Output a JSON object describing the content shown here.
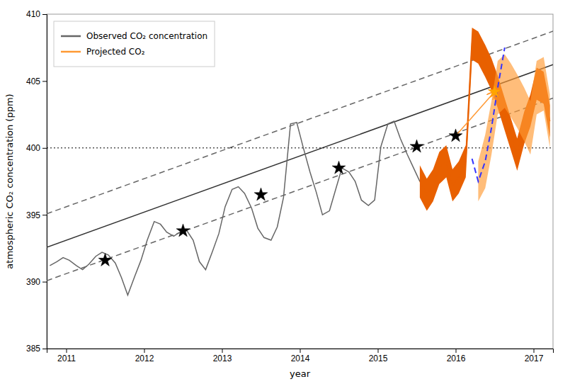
{
  "chart_data": {
    "type": "line",
    "xlabel": "year",
    "ylabel": "atmospheric CO₂ concentration (ppm)",
    "xlim": [
      2010.75,
      2017.25
    ],
    "ylim": [
      385,
      410
    ],
    "xticks": [
      2011,
      2012,
      2013,
      2014,
      2015,
      2016,
      2017
    ],
    "yticks": [
      385,
      390,
      395,
      400,
      405,
      410
    ],
    "grid": false,
    "legend": "upper left",
    "series": [
      {
        "type": "line",
        "color": "#666666",
        "line_style": "dashed",
        "x": [
          2010.75,
          2017.25
        ],
        "values": [
          395.075,
          408.725
        ]
      },
      {
        "type": "line",
        "color": "#666666",
        "line_style": "dashed",
        "x": [
          2010.75,
          2017.25
        ],
        "values": [
          390.075,
          403.725
        ]
      },
      {
        "type": "line",
        "color": "#333333",
        "line_style": "solid",
        "x": [
          2010.75,
          2017.25
        ],
        "values": [
          392.575,
          406.225
        ]
      },
      {
        "type": "hline",
        "color": "black",
        "line_style": "dotted",
        "values": [
          400
        ]
      },
      {
        "type": "line",
        "name": "Observed CO₂ concentration",
        "color": "#666666",
        "line_style": "solid",
        "x": [
          2010.79,
          2010.88,
          2010.96,
          2011.04,
          2011.13,
          2011.21,
          2011.29,
          2011.38,
          2011.46,
          2011.54,
          2011.63,
          2011.71,
          2011.79,
          2011.88,
          2011.96,
          2012.04,
          2012.13,
          2012.21,
          2012.29,
          2012.38,
          2012.46,
          2012.54,
          2012.63,
          2012.71,
          2012.79,
          2012.88,
          2012.96,
          2013.04,
          2013.13,
          2013.21,
          2013.29,
          2013.38,
          2013.46,
          2013.54,
          2013.63,
          2013.71,
          2013.79,
          2013.88,
          2013.96,
          2014.04,
          2014.13,
          2014.21,
          2014.29,
          2014.38,
          2014.46,
          2014.54,
          2014.63,
          2014.71,
          2014.79,
          2014.88,
          2014.96,
          2015.04,
          2015.13,
          2015.21,
          2015.29,
          2015.38,
          2015.46,
          2015.54
        ],
        "values": [
          391.2,
          391.5,
          391.8,
          391.6,
          391.2,
          390.9,
          391.3,
          391.9,
          392.2,
          392.0,
          391.4,
          390.3,
          389.0,
          390.4,
          391.6,
          393.1,
          394.5,
          394.3,
          393.7,
          393.4,
          393.7,
          393.9,
          393.1,
          391.5,
          390.9,
          392.3,
          393.6,
          395.6,
          396.9,
          397.1,
          396.6,
          395.5,
          394.0,
          393.3,
          393.1,
          394.1,
          396.3,
          401.8,
          401.9,
          400.1,
          398.2,
          396.7,
          395.0,
          395.3,
          396.9,
          398.5,
          398.2,
          397.5,
          396.1,
          395.7,
          396.1,
          400.1,
          401.8,
          402.0,
          400.7,
          399.5,
          398.5,
          397.5
        ]
      },
      {
        "type": "area",
        "color": "#E86000",
        "x": [
          2015.54,
          2015.63,
          2015.71,
          2015.79,
          2015.88,
          2015.96,
          2016.04,
          2016.13,
          2016.21,
          2016.29,
          2016.38,
          2016.46,
          2016.54,
          2016.63,
          2016.71,
          2016.79,
          2016.88,
          2016.96,
          2017.04,
          2017.13,
          2017.21
        ],
        "lower": [
          396.3,
          395.3,
          396.0,
          397.3,
          397.8,
          396.0,
          396.6,
          397.8,
          406.6,
          406.3,
          405.3,
          404.3,
          403.0,
          401.3,
          399.8,
          398.3,
          400.3,
          401.6,
          403.6,
          403.3,
          400.8
        ],
        "upper": [
          398.7,
          397.7,
          398.4,
          399.7,
          400.2,
          398.4,
          399.0,
          400.2,
          409.0,
          408.7,
          407.7,
          406.7,
          405.4,
          403.7,
          402.2,
          400.7,
          402.7,
          404.0,
          406.0,
          405.7,
          403.2
        ]
      },
      {
        "type": "line",
        "color": "#E86000",
        "line_style": "solid",
        "x": [
          2015.54,
          2015.63,
          2015.71,
          2015.79,
          2015.88,
          2015.96,
          2016.04,
          2016.13,
          2016.21,
          2016.29,
          2016.38,
          2016.46,
          2016.54,
          2016.63,
          2016.71,
          2016.79,
          2016.88,
          2016.96,
          2017.04,
          2017.13,
          2017.21
        ],
        "values": [
          397.5,
          396.5,
          397.2,
          398.5,
          399.0,
          397.2,
          397.8,
          399.0,
          407.8,
          407.5,
          406.5,
          405.5,
          404.2,
          402.5,
          401.0,
          399.5,
          401.5,
          402.8,
          404.8,
          404.5,
          402.0
        ]
      },
      {
        "type": "area",
        "name": "Projected CO₂",
        "color": "#FF9933",
        "x": [
          2016.29,
          2016.38,
          2016.46,
          2016.54,
          2016.63,
          2016.71,
          2016.79,
          2016.88,
          2016.96,
          2017.04,
          2017.13,
          2017.21
        ],
        "lower": [
          396.0,
          397.0,
          399.5,
          402.5,
          403.0,
          402.3,
          401.5,
          400.5,
          399.5,
          402.5,
          402.8,
          400.0
        ],
        "upper": [
          399.0,
          401.0,
          403.5,
          406.5,
          407.0,
          406.3,
          405.5,
          404.5,
          403.5,
          406.5,
          406.8,
          404.0
        ]
      },
      {
        "type": "line",
        "color": "#3333FF",
        "line_style": "dashed",
        "x": [
          2016.21,
          2016.29,
          2016.38,
          2016.46,
          2016.54,
          2016.63
        ],
        "values": [
          399.2,
          397.5,
          399.0,
          401.5,
          404.5,
          407.5
        ]
      },
      {
        "type": "arrow",
        "color": "#FF9933",
        "x": [
          2016.0,
          2016.5
        ],
        "values": [
          400.9,
          404.2
        ]
      },
      {
        "type": "scatter",
        "marker": "star",
        "color": "black",
        "x": [
          2011.5,
          2012.5,
          2013.5,
          2014.5,
          2015.5,
          2016.0
        ],
        "values": [
          391.6,
          393.8,
          396.5,
          398.5,
          400.1,
          400.9
        ]
      },
      {
        "type": "scatter",
        "marker": "star",
        "color": "orange",
        "x": [
          2016.5
        ],
        "values": [
          404.2
        ]
      }
    ]
  }
}
